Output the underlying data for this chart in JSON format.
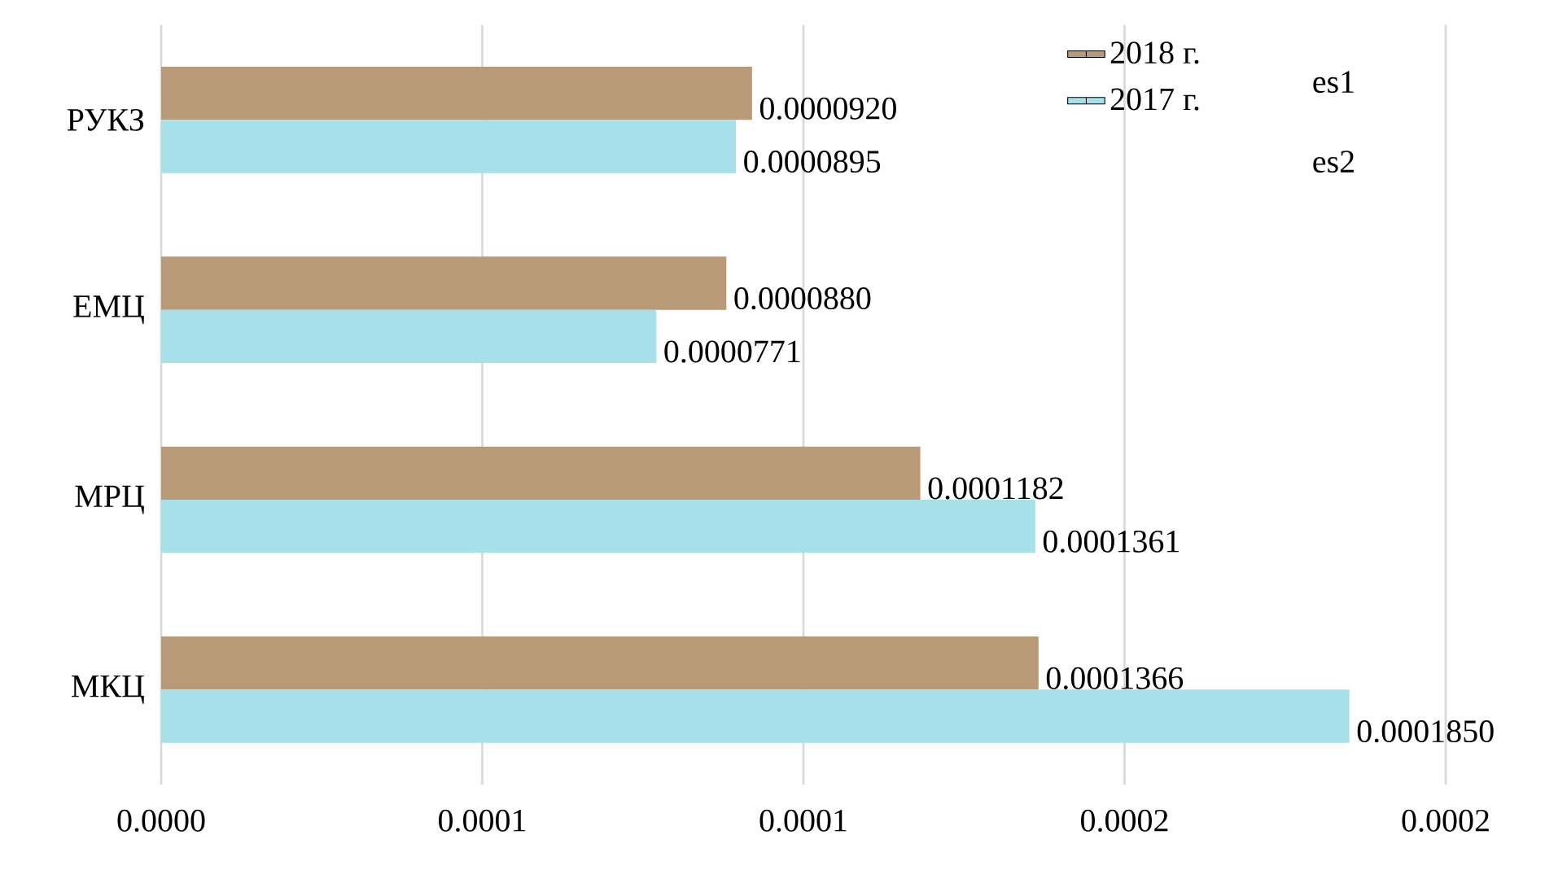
{
  "chart_data": {
    "type": "bar",
    "orientation": "horizontal",
    "categories": [
      "РУКЗ",
      "ЕМЦ",
      "МРЦ",
      "МКЦ"
    ],
    "series": [
      {
        "name": "2018 г.",
        "color": "#b89a78",
        "values": [
          9.2e-05,
          8.8e-05,
          0.0001182,
          0.0001366
        ],
        "value_labels": [
          "0.0000920",
          "0.0000880",
          "0.0001182",
          "0.0001366"
        ]
      },
      {
        "name": "2017 г.",
        "color": "#a8e0ea",
        "values": [
          8.95e-05,
          7.71e-05,
          0.0001361,
          0.000185
        ],
        "value_labels": [
          "0.0000895",
          "0.0000771",
          "0.0001361",
          "0.0001850"
        ]
      }
    ],
    "xlim": [
      0,
      0.0002
    ],
    "xticks": [
      {
        "value": 0,
        "label": "0.0000"
      },
      {
        "value": 5e-05,
        "label": "0.0001"
      },
      {
        "value": 0.0001,
        "label": "0.0001"
      },
      {
        "value": 0.00015,
        "label": "0.0002"
      },
      {
        "value": 0.0002,
        "label": "0.0002"
      }
    ],
    "grid": "x",
    "legend": "top right",
    "annotations": [
      "es1",
      "es2"
    ]
  }
}
